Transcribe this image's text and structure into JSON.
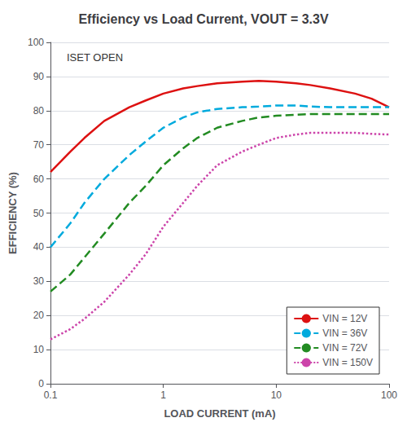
{
  "chart_data": {
    "type": "line",
    "title": "Efficiency vs Load Current, VOUT = 3.3V",
    "xlabel": "LOAD CURRENT (mA)",
    "ylabel": "EFFICIENCY (%)",
    "annotation": "ISET OPEN",
    "log": "x",
    "xlim": [
      0.1,
      100
    ],
    "xticks": [
      0.1,
      1,
      10,
      100
    ],
    "ylim": [
      0,
      100
    ],
    "yticks": [
      0,
      10,
      20,
      30,
      40,
      50,
      60,
      70,
      80,
      90,
      100
    ],
    "grid": true,
    "legend": "lower right",
    "x": [
      0.1,
      0.15,
      0.2,
      0.3,
      0.5,
      0.7,
      1.0,
      1.5,
      2.0,
      3.0,
      5.0,
      7.0,
      10,
      15,
      20,
      30,
      50,
      70,
      100
    ],
    "series": [
      {
        "name": "VIN = 12V",
        "color": "#dd1111",
        "line_style": "solid",
        "values": [
          62,
          68,
          72,
          77,
          81,
          83,
          85,
          86.5,
          87.2,
          88,
          88.5,
          88.7,
          88.5,
          88,
          87.5,
          86.5,
          85,
          83.5,
          81
        ]
      },
      {
        "name": "VIN = 36V",
        "color": "#00aadd",
        "line_style": "dashed",
        "values": [
          40,
          47,
          53,
          60,
          67,
          71,
          75,
          78,
          79.5,
          80.5,
          81,
          81.2,
          81.5,
          81.5,
          81.2,
          81,
          81,
          81,
          81
        ]
      },
      {
        "name": "VIN = 72V",
        "color": "#228B22",
        "line_style": "dashed",
        "values": [
          27,
          32,
          37,
          44,
          53,
          58,
          64,
          69,
          72,
          75,
          77,
          78,
          78.5,
          78.8,
          79,
          79,
          79,
          79,
          79
        ]
      },
      {
        "name": "VIN = 150V",
        "color": "#cc44aa",
        "line_style": "dotted",
        "values": [
          13,
          16,
          19,
          24,
          32,
          38,
          46,
          53,
          58,
          64,
          68,
          70,
          72,
          73,
          73.5,
          73.5,
          73.5,
          73.2,
          73
        ]
      }
    ]
  }
}
